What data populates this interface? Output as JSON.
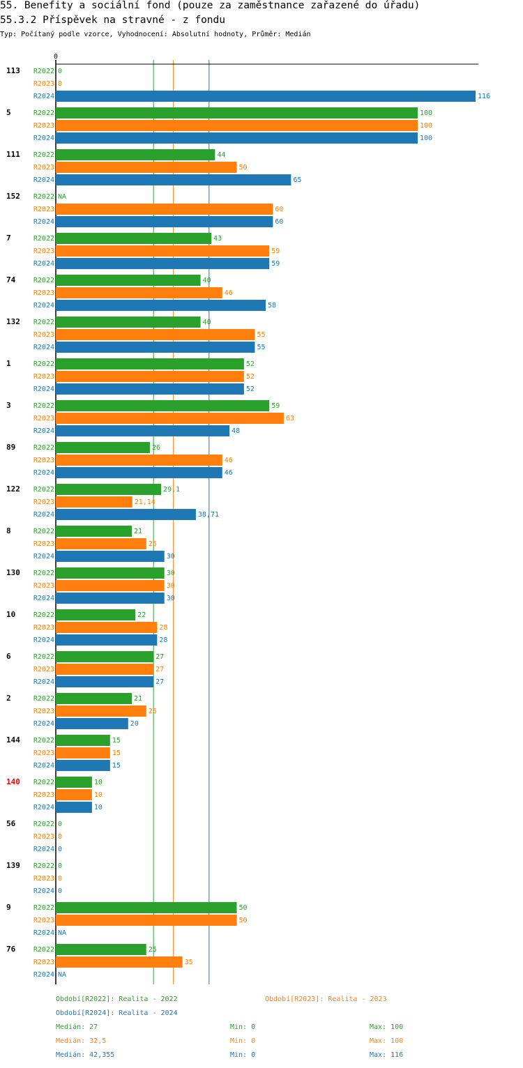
{
  "header": {
    "title": "55. Benefity a sociální fond (pouze za zaměstnance zařazené do úřadu)",
    "subtitle": "55.3.2 Příspěvek na stravné - z fondu",
    "info": "Typ: Počítaný podle vzorce, Vyhodnocení: Absolutní hodnoty, Průměr: Medián"
  },
  "colors": {
    "R2022": "#2ca02c",
    "R2023": "#ff7f0e",
    "R2024": "#1f77b4",
    "highlight": "#ff0000"
  },
  "chart_data": {
    "type": "bar",
    "orientation": "horizontal",
    "axis_zero_label": "0",
    "xlim": [
      0,
      116
    ],
    "series_names": [
      "R2022",
      "R2023",
      "R2024"
    ],
    "groups": [
      {
        "id": "113",
        "highlight": false,
        "values": [
          0,
          0,
          116
        ],
        "labels": [
          "0",
          "0",
          "116"
        ]
      },
      {
        "id": "5",
        "highlight": false,
        "values": [
          100,
          100,
          100
        ],
        "labels": [
          "100",
          "100",
          "100"
        ]
      },
      {
        "id": "111",
        "highlight": false,
        "values": [
          44,
          50,
          65
        ],
        "labels": [
          "44",
          "50",
          "65"
        ]
      },
      {
        "id": "152",
        "highlight": false,
        "values": [
          null,
          60,
          60
        ],
        "labels": [
          "NA",
          "60",
          "60"
        ]
      },
      {
        "id": "7",
        "highlight": false,
        "values": [
          43,
          59,
          59
        ],
        "labels": [
          "43",
          "59",
          "59"
        ]
      },
      {
        "id": "74",
        "highlight": false,
        "values": [
          40,
          46,
          58
        ],
        "labels": [
          "40",
          "46",
          "58"
        ]
      },
      {
        "id": "132",
        "highlight": false,
        "values": [
          40,
          55,
          55
        ],
        "labels": [
          "40",
          "55",
          "55"
        ]
      },
      {
        "id": "1",
        "highlight": false,
        "values": [
          52,
          52,
          52
        ],
        "labels": [
          "52",
          "52",
          "52"
        ]
      },
      {
        "id": "3",
        "highlight": false,
        "values": [
          59,
          63,
          48
        ],
        "labels": [
          "59",
          "63",
          "48"
        ]
      },
      {
        "id": "89",
        "highlight": false,
        "values": [
          26,
          46,
          46
        ],
        "labels": [
          "26",
          "46",
          "46"
        ]
      },
      {
        "id": "122",
        "highlight": false,
        "values": [
          29.1,
          21.14,
          38.71
        ],
        "labels": [
          "29,1",
          "21,14",
          "38,71"
        ]
      },
      {
        "id": "8",
        "highlight": false,
        "values": [
          21,
          25,
          30
        ],
        "labels": [
          "21",
          "25",
          "30"
        ]
      },
      {
        "id": "130",
        "highlight": false,
        "values": [
          30,
          30,
          30
        ],
        "labels": [
          "30",
          "30",
          "30"
        ]
      },
      {
        "id": "10",
        "highlight": false,
        "values": [
          22,
          28,
          28
        ],
        "labels": [
          "22",
          "28",
          "28"
        ]
      },
      {
        "id": "6",
        "highlight": false,
        "values": [
          27,
          27,
          27
        ],
        "labels": [
          "27",
          "27",
          "27"
        ]
      },
      {
        "id": "2",
        "highlight": false,
        "values": [
          21,
          25,
          20
        ],
        "labels": [
          "21",
          "25",
          "20"
        ]
      },
      {
        "id": "144",
        "highlight": false,
        "values": [
          15,
          15,
          15
        ],
        "labels": [
          "15",
          "15",
          "15"
        ]
      },
      {
        "id": "140",
        "highlight": true,
        "values": [
          10,
          10,
          10
        ],
        "labels": [
          "10",
          "10",
          "10"
        ]
      },
      {
        "id": "56",
        "highlight": false,
        "values": [
          0,
          0,
          0
        ],
        "labels": [
          "0",
          "0",
          "0"
        ]
      },
      {
        "id": "139",
        "highlight": false,
        "values": [
          0,
          0,
          0
        ],
        "labels": [
          "0",
          "0",
          "0"
        ]
      },
      {
        "id": "9",
        "highlight": false,
        "values": [
          50,
          50,
          null
        ],
        "labels": [
          "50",
          "50",
          "NA"
        ]
      },
      {
        "id": "76",
        "highlight": false,
        "values": [
          25,
          35,
          null
        ],
        "labels": [
          "25",
          "35",
          "NA"
        ]
      }
    ],
    "medians": [
      27,
      32.5,
      42.355
    ]
  },
  "legend": {
    "periods": [
      "Období[R2022]: Realita - 2022",
      "Období[R2023]: Realita - 2023",
      "Období[R2024]: Realita - 2024"
    ],
    "stats": [
      {
        "median": "Medián: 27",
        "min": "Min: 0",
        "max": "Max: 100"
      },
      {
        "median": "Medián: 32,5",
        "min": "Min: 0",
        "max": "Max: 100"
      },
      {
        "median": "Medián: 42,355",
        "min": "Min: 0",
        "max": "Max: 116"
      }
    ]
  }
}
